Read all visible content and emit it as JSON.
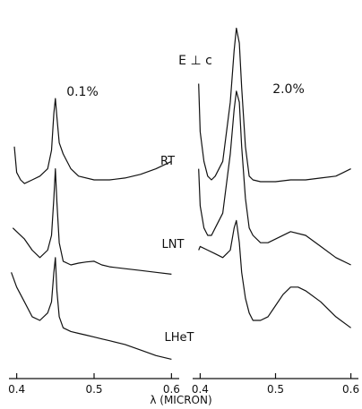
{
  "chart_data": [
    {
      "type": "line",
      "panel": "left",
      "label": "0.1%",
      "xlabel": "λ (MICRON)",
      "xticks": [
        0.4,
        0.5,
        0.6
      ],
      "xlim": [
        0.39,
        0.61
      ],
      "series": [
        {
          "name": "RT",
          "x": [
            0.397,
            0.4,
            0.405,
            0.41,
            0.42,
            0.43,
            0.44,
            0.445,
            0.448,
            0.45,
            0.452,
            0.455,
            0.46,
            0.47,
            0.48,
            0.5,
            0.52,
            0.54,
            0.56,
            0.58,
            0.6
          ],
          "y": [
            0.86,
            0.79,
            0.77,
            0.76,
            0.77,
            0.78,
            0.8,
            0.85,
            0.95,
            0.99,
            0.94,
            0.87,
            0.84,
            0.8,
            0.78,
            0.77,
            0.77,
            0.775,
            0.785,
            0.8,
            0.82
          ]
        },
        {
          "name": "LNT",
          "x": [
            0.395,
            0.4,
            0.41,
            0.42,
            0.43,
            0.44,
            0.445,
            0.448,
            0.45,
            0.452,
            0.455,
            0.46,
            0.47,
            0.48,
            0.49,
            0.5,
            0.51,
            0.52,
            0.54,
            0.56,
            0.58,
            0.6
          ],
          "y": [
            0.64,
            0.63,
            0.61,
            0.58,
            0.56,
            0.58,
            0.62,
            0.72,
            0.8,
            0.71,
            0.6,
            0.55,
            0.54,
            0.545,
            0.548,
            0.55,
            0.54,
            0.535,
            0.53,
            0.525,
            0.52,
            0.515
          ]
        },
        {
          "name": "LHeT",
          "x": [
            0.393,
            0.4,
            0.41,
            0.42,
            0.43,
            0.44,
            0.445,
            0.448,
            0.45,
            0.452,
            0.455,
            0.46,
            0.47,
            0.48,
            0.49,
            0.5,
            0.51,
            0.52,
            0.54,
            0.56,
            0.58,
            0.6
          ],
          "y": [
            0.52,
            0.48,
            0.44,
            0.4,
            0.39,
            0.41,
            0.44,
            0.52,
            0.56,
            0.47,
            0.4,
            0.37,
            0.36,
            0.355,
            0.35,
            0.345,
            0.34,
            0.335,
            0.325,
            0.31,
            0.295,
            0.285
          ]
        }
      ]
    },
    {
      "type": "line",
      "panel": "right",
      "label": "2.0%",
      "annotation": "E ⊥ c",
      "xlabel": "λ (MICRON)",
      "xticks": [
        0.4,
        0.5,
        0.6
      ],
      "xlim": [
        0.39,
        0.61
      ],
      "series": [
        {
          "name": "RT",
          "x": [
            0.398,
            0.4,
            0.405,
            0.41,
            0.415,
            0.42,
            0.43,
            0.44,
            0.445,
            0.448,
            0.452,
            0.455,
            0.46,
            0.465,
            0.47,
            0.48,
            0.5,
            0.52,
            0.54,
            0.56,
            0.58,
            0.6
          ],
          "y": [
            1.03,
            0.9,
            0.82,
            0.78,
            0.77,
            0.78,
            0.82,
            0.98,
            1.12,
            1.18,
            1.14,
            1.02,
            0.86,
            0.78,
            0.77,
            0.765,
            0.765,
            0.77,
            0.77,
            0.775,
            0.78,
            0.8
          ]
        },
        {
          "name": "LNT",
          "x": [
            0.398,
            0.4,
            0.405,
            0.41,
            0.415,
            0.42,
            0.43,
            0.44,
            0.445,
            0.448,
            0.452,
            0.455,
            0.46,
            0.465,
            0.47,
            0.48,
            0.49,
            0.5,
            0.52,
            0.54,
            0.56,
            0.58,
            0.6
          ],
          "y": [
            0.8,
            0.7,
            0.64,
            0.62,
            0.62,
            0.64,
            0.68,
            0.84,
            0.96,
            1.01,
            0.98,
            0.86,
            0.72,
            0.64,
            0.62,
            0.6,
            0.6,
            0.61,
            0.63,
            0.62,
            0.59,
            0.56,
            0.54
          ]
        },
        {
          "name": "LHeT",
          "x": [
            0.398,
            0.4,
            0.41,
            0.42,
            0.43,
            0.44,
            0.445,
            0.448,
            0.452,
            0.455,
            0.46,
            0.465,
            0.47,
            0.48,
            0.49,
            0.5,
            0.51,
            0.52,
            0.53,
            0.54,
            0.56,
            0.58,
            0.6
          ],
          "y": [
            0.58,
            0.59,
            0.58,
            0.57,
            0.56,
            0.58,
            0.64,
            0.66,
            0.6,
            0.52,
            0.45,
            0.41,
            0.39,
            0.39,
            0.4,
            0.43,
            0.46,
            0.48,
            0.48,
            0.47,
            0.44,
            0.4,
            0.37
          ]
        }
      ]
    }
  ]
}
